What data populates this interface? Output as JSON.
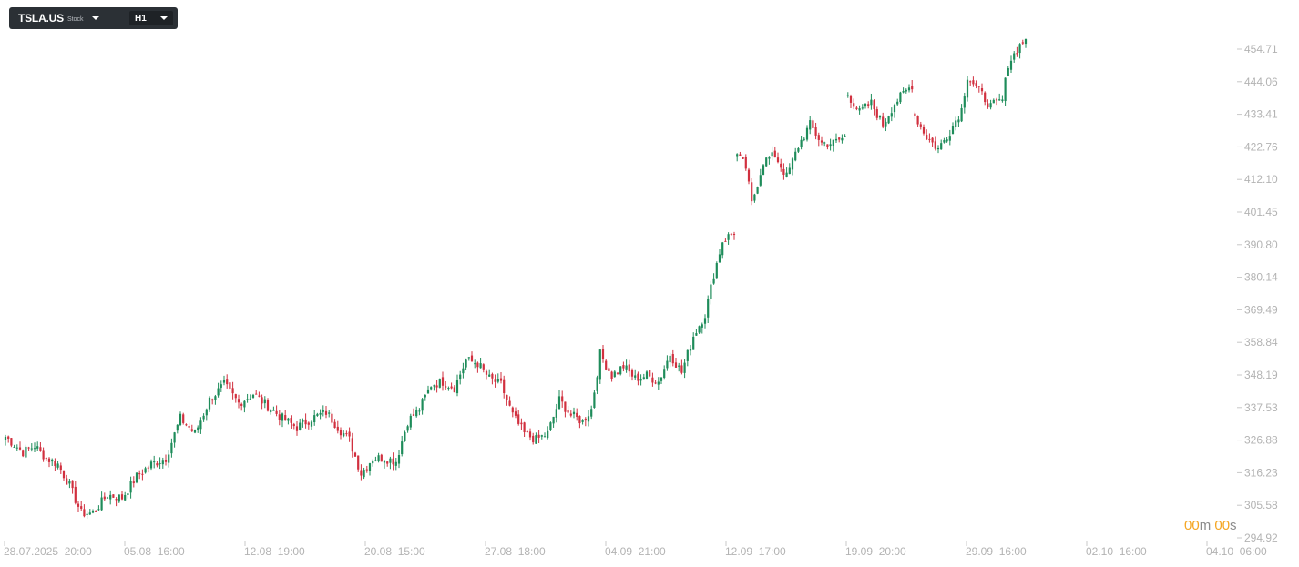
{
  "toolbar": {
    "symbol": "TSLA.US",
    "type": "Stock",
    "timeframe": "H1"
  },
  "countdown": {
    "minutes": "00",
    "minutes_unit": "m",
    "seconds": "00",
    "seconds_unit": "s"
  },
  "colors": {
    "up": "#1e8c5a",
    "down": "#d1303f",
    "axis_text": "#b3b3b3",
    "countdown": "#f5a623",
    "toolbar_bg": "#2b3035"
  },
  "chart_data": {
    "type": "candlestick",
    "y_ticks": [
      "454.71",
      "444.06",
      "433.41",
      "422.76",
      "412.10",
      "401.45",
      "390.80",
      "380.14",
      "369.49",
      "358.84",
      "348.19",
      "337.53",
      "326.88",
      "316.23",
      "305.58",
      "294.92"
    ],
    "ylim": [
      294.92,
      454.71
    ],
    "x_ticks": [
      "28.07.2025  20:00",
      "05.08  16:00",
      "12.08  19:00",
      "20.08  15:00",
      "27.08  18:00",
      "04.09  21:00",
      "12.09  17:00",
      "19.09  20:00",
      "29.09  16:00",
      "02.10  16:00",
      "04.10  06:00"
    ],
    "grid": false,
    "anchors": [
      {
        "i": 0,
        "v": 328
      },
      {
        "i": 6,
        "v": 323
      },
      {
        "i": 10,
        "v": 325
      },
      {
        "i": 14,
        "v": 321
      },
      {
        "i": 18,
        "v": 319
      },
      {
        "i": 22,
        "v": 312
      },
      {
        "i": 26,
        "v": 303
      },
      {
        "i": 30,
        "v": 303
      },
      {
        "i": 35,
        "v": 309
      },
      {
        "i": 40,
        "v": 308
      },
      {
        "i": 45,
        "v": 315
      },
      {
        "i": 50,
        "v": 319
      },
      {
        "i": 55,
        "v": 321
      },
      {
        "i": 60,
        "v": 334
      },
      {
        "i": 65,
        "v": 329
      },
      {
        "i": 70,
        "v": 340
      },
      {
        "i": 75,
        "v": 345
      },
      {
        "i": 80,
        "v": 339
      },
      {
        "i": 85,
        "v": 342
      },
      {
        "i": 90,
        "v": 338
      },
      {
        "i": 95,
        "v": 334
      },
      {
        "i": 100,
        "v": 331
      },
      {
        "i": 105,
        "v": 334
      },
      {
        "i": 110,
        "v": 336
      },
      {
        "i": 115,
        "v": 330
      },
      {
        "i": 118,
        "v": 327
      },
      {
        "i": 122,
        "v": 316
      },
      {
        "i": 126,
        "v": 321
      },
      {
        "i": 130,
        "v": 321
      },
      {
        "i": 134,
        "v": 320
      },
      {
        "i": 138,
        "v": 333
      },
      {
        "i": 142,
        "v": 337
      },
      {
        "i": 146,
        "v": 345
      },
      {
        "i": 150,
        "v": 346
      },
      {
        "i": 154,
        "v": 344
      },
      {
        "i": 158,
        "v": 353
      },
      {
        "i": 162,
        "v": 352
      },
      {
        "i": 166,
        "v": 347
      },
      {
        "i": 170,
        "v": 345
      },
      {
        "i": 174,
        "v": 335
      },
      {
        "i": 178,
        "v": 329
      },
      {
        "i": 182,
        "v": 327
      },
      {
        "i": 186,
        "v": 329
      },
      {
        "i": 190,
        "v": 340
      },
      {
        "i": 194,
        "v": 335
      },
      {
        "i": 198,
        "v": 333
      },
      {
        "i": 201,
        "v": 337
      },
      {
        "i": 204,
        "v": 355
      },
      {
        "i": 208,
        "v": 348
      },
      {
        "i": 212,
        "v": 351
      },
      {
        "i": 216,
        "v": 347
      },
      {
        "i": 220,
        "v": 348
      },
      {
        "i": 224,
        "v": 346
      },
      {
        "i": 228,
        "v": 355
      },
      {
        "i": 232,
        "v": 349
      },
      {
        "i": 236,
        "v": 361
      },
      {
        "i": 240,
        "v": 368
      },
      {
        "i": 243,
        "v": 381
      },
      {
        "i": 246,
        "v": 392
      },
      {
        "i": 250,
        "v": 395
      },
      {
        "i": 251,
        "v": 420
      },
      {
        "i": 254,
        "v": 416
      },
      {
        "i": 256,
        "v": 404
      },
      {
        "i": 260,
        "v": 418
      },
      {
        "i": 264,
        "v": 420
      },
      {
        "i": 268,
        "v": 413
      },
      {
        "i": 272,
        "v": 423
      },
      {
        "i": 276,
        "v": 430
      },
      {
        "i": 280,
        "v": 424
      },
      {
        "i": 284,
        "v": 424
      },
      {
        "i": 288,
        "v": 426
      },
      {
        "i": 289,
        "v": 440
      },
      {
        "i": 293,
        "v": 434
      },
      {
        "i": 297,
        "v": 437
      },
      {
        "i": 301,
        "v": 430
      },
      {
        "i": 305,
        "v": 437
      },
      {
        "i": 309,
        "v": 441
      },
      {
        "i": 311,
        "v": 443
      },
      {
        "i": 312,
        "v": 433
      },
      {
        "i": 316,
        "v": 426
      },
      {
        "i": 320,
        "v": 422
      },
      {
        "i": 324,
        "v": 428
      },
      {
        "i": 328,
        "v": 435
      },
      {
        "i": 330,
        "v": 446
      },
      {
        "i": 334,
        "v": 441
      },
      {
        "i": 338,
        "v": 436
      },
      {
        "i": 342,
        "v": 438
      },
      {
        "i": 344,
        "v": 450
      },
      {
        "i": 348,
        "v": 456
      },
      {
        "i": 350,
        "v": 458
      }
    ],
    "candles": []
  }
}
